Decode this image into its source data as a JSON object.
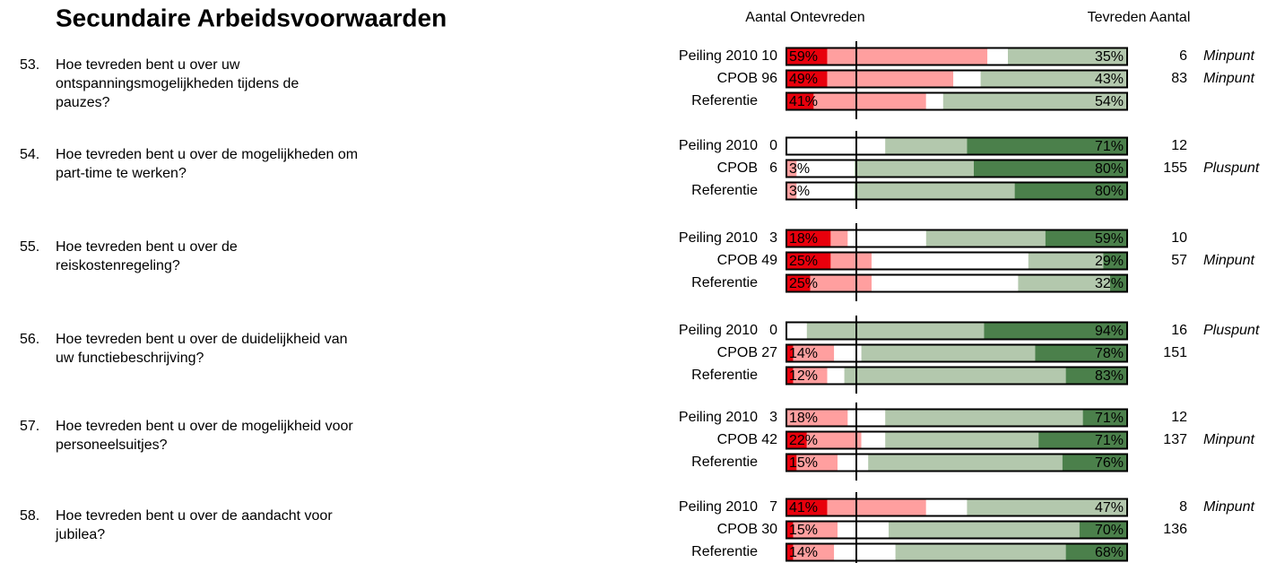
{
  "title": "Secundaire Arbeidsvoorwaarden",
  "header_left": "Aantal Ontevreden",
  "header_right": "Tevreden Aantal",
  "colors": [
    "#e8000c",
    "#ff9f9f",
    "#ffffff",
    "#b3c8ad",
    "#4b804b"
  ],
  "questions": [
    {
      "number": "53.",
      "text_lines": [
        "Hoe tevreden bent u over uw",
        "ontspanningsmogelijkheden tijdens de",
        "pauzes?"
      ],
      "rows": [
        {
          "label": "Peiling 2010",
          "count_negative": 10,
          "segments": [
            12,
            47,
            6,
            35,
            0
          ],
          "negative_label": "59%",
          "positive_label": "35%",
          "count_positive": 6,
          "verdict": "Minpunt"
        },
        {
          "label": "CPOB",
          "count_negative": 96,
          "segments": [
            12,
            37,
            8,
            43,
            0
          ],
          "negative_label": "49%",
          "positive_label": "43%",
          "count_positive": 83,
          "verdict": "Minpunt"
        },
        {
          "label": "Referentie",
          "segments": [
            8,
            33,
            5,
            54,
            0
          ],
          "negative_label": "41%",
          "positive_label": "54%"
        }
      ]
    },
    {
      "number": "54.",
      "text_lines": [
        "Hoe tevreden bent u over de mogelijkheden om",
        "part-time te werken?"
      ],
      "rows": [
        {
          "label": "Peiling 2010",
          "count_negative": 0,
          "segments": [
            0,
            0,
            29,
            24,
            47
          ],
          "positive_label": "71%",
          "count_positive": 12
        },
        {
          "label": "CPOB",
          "count_negative": 6,
          "segments": [
            0,
            3,
            17,
            35,
            45
          ],
          "negative_label": "3%",
          "positive_label": "80%",
          "count_positive": 155,
          "verdict": "Pluspunt"
        },
        {
          "label": "Referentie",
          "segments": [
            0,
            3,
            17,
            47,
            33
          ],
          "negative_label": "3%",
          "positive_label": "80%"
        }
      ]
    },
    {
      "number": "55.",
      "text_lines": [
        "Hoe tevreden bent u over de",
        "reiskostenregeling?"
      ],
      "rows": [
        {
          "label": "Peiling 2010",
          "count_negative": 3,
          "segments": [
            13,
            5,
            23,
            35,
            24
          ],
          "negative_label": "18%",
          "positive_label": "59%",
          "count_positive": 10
        },
        {
          "label": "CPOB",
          "count_negative": 49,
          "segments": [
            13,
            12,
            46,
            22,
            7
          ],
          "negative_label": "25%",
          "positive_label": "29%",
          "count_positive": 57,
          "verdict": "Minpunt"
        },
        {
          "label": "Referentie",
          "segments": [
            7,
            18,
            43,
            27,
            5
          ],
          "negative_label": "25%",
          "positive_label": "32%"
        }
      ]
    },
    {
      "number": "56.",
      "text_lines": [
        "Hoe tevreden bent u over de duidelijkheid van",
        "uw functiebeschrijving?"
      ],
      "rows": [
        {
          "label": "Peiling 2010",
          "count_negative": 0,
          "segments": [
            0,
            0,
            6,
            52,
            42
          ],
          "positive_label": "94%",
          "count_positive": 16,
          "verdict": "Pluspunt"
        },
        {
          "label": "CPOB",
          "count_negative": 27,
          "segments": [
            2,
            12,
            8,
            51,
            27
          ],
          "negative_label": "14%",
          "positive_label": "78%",
          "count_positive": 151
        },
        {
          "label": "Referentie",
          "segments": [
            2,
            10,
            5,
            65,
            18
          ],
          "negative_label": "12%",
          "positive_label": "83%"
        }
      ]
    },
    {
      "number": "57.",
      "text_lines": [
        "Hoe tevreden bent u over de mogelijkheid voor",
        "personeelsuitjes?"
      ],
      "rows": [
        {
          "label": "Peiling 2010",
          "count_negative": 3,
          "segments": [
            0,
            18,
            11,
            58,
            13
          ],
          "negative_label": "18%",
          "positive_label": "71%",
          "count_positive": 12
        },
        {
          "label": "CPOB",
          "count_negative": 42,
          "segments": [
            6,
            16,
            7,
            45,
            26
          ],
          "negative_label": "22%",
          "positive_label": "71%",
          "count_positive": 137,
          "verdict": "Minpunt"
        },
        {
          "label": "Referentie",
          "segments": [
            3,
            12,
            9,
            57,
            19
          ],
          "negative_label": "15%",
          "positive_label": "76%"
        }
      ]
    },
    {
      "number": "58.",
      "text_lines": [
        "Hoe tevreden bent u over de aandacht voor",
        "jubilea?"
      ],
      "rows": [
        {
          "label": "Peiling 2010",
          "count_negative": 7,
          "segments": [
            12,
            29,
            12,
            47,
            0
          ],
          "negative_label": "41%",
          "positive_label": "47%",
          "count_positive": 8,
          "verdict": "Minpunt"
        },
        {
          "label": "CPOB",
          "count_negative": 30,
          "segments": [
            2,
            13,
            15,
            56,
            14
          ],
          "negative_label": "15%",
          "positive_label": "70%",
          "count_positive": 136
        },
        {
          "label": "Referentie",
          "segments": [
            2,
            12,
            18,
            50,
            18
          ],
          "negative_label": "14%",
          "positive_label": "68%"
        }
      ]
    }
  ]
}
